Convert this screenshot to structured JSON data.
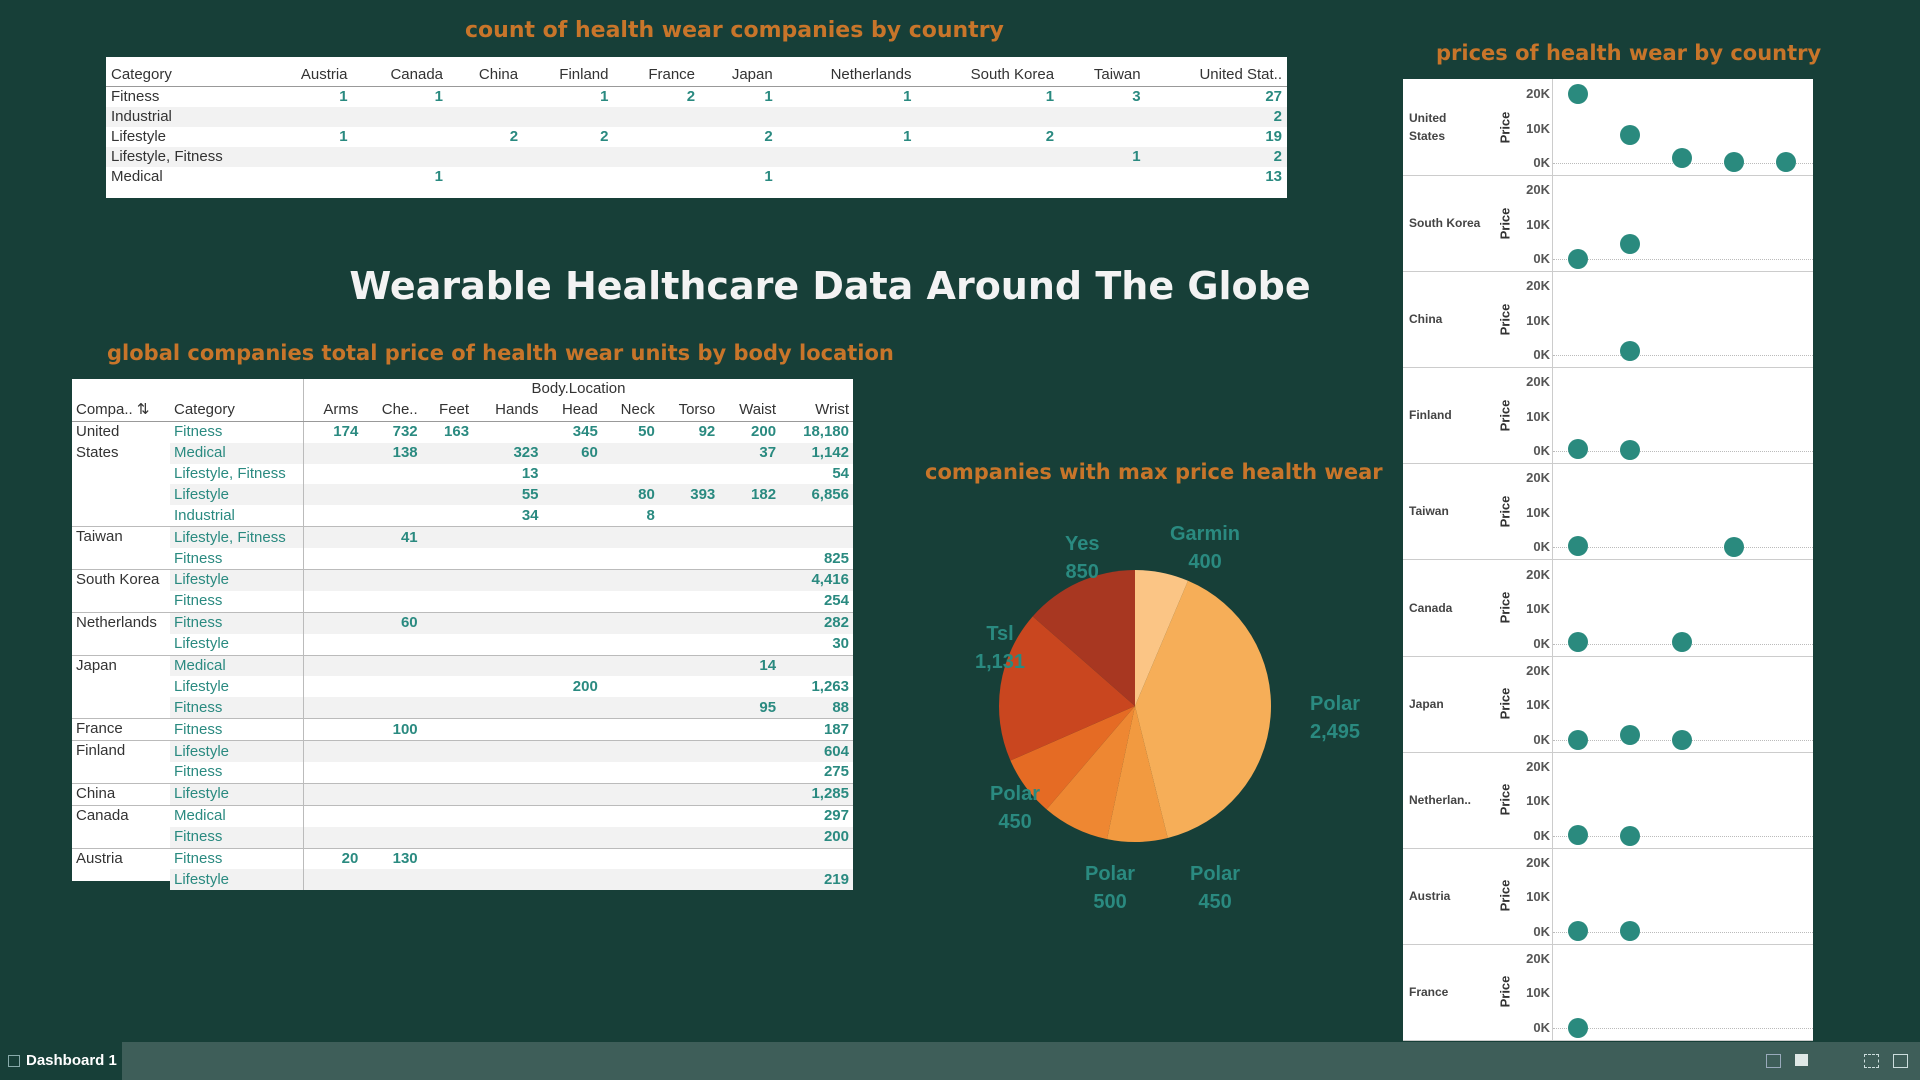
{
  "count_title": "count of health wear companies by country",
  "count_table": {
    "columns": [
      "Category",
      "Austria",
      "Canada",
      "China",
      "Finland",
      "France",
      "Japan",
      "Netherlands",
      "South Korea",
      "Taiwan",
      "United Stat.."
    ],
    "rows": [
      [
        "Fitness",
        "1",
        "1",
        "",
        "1",
        "2",
        "1",
        "1",
        "1",
        "3",
        "27"
      ],
      [
        "Industrial",
        "",
        "",
        "",
        "",
        "",
        "",
        "",
        "",
        "",
        "2"
      ],
      [
        "Lifestyle",
        "1",
        "",
        "2",
        "2",
        "",
        "2",
        "1",
        "2",
        "",
        "19"
      ],
      [
        "Lifestyle, Fitness",
        "",
        "",
        "",
        "",
        "",
        "",
        "",
        "",
        "1",
        "2"
      ],
      [
        "Medical",
        "",
        "1",
        "",
        "",
        "",
        "1",
        "",
        "",
        "",
        "13"
      ]
    ]
  },
  "main_title": "Wearable Healthcare Data Around The Globe",
  "price_title": "global companies total price of health wear units by body location",
  "price_table": {
    "group_header": "Body.Location",
    "company_header": "Compa..",
    "category_header": "Category",
    "locations": [
      "Arms",
      "Che..",
      "Feet",
      "Hands",
      "Head",
      "Neck",
      "Torso",
      "Waist",
      "Wrist"
    ],
    "rows": [
      {
        "company": "United",
        "category": "Fitness",
        "values": [
          "174",
          "732",
          "163",
          "",
          "345",
          "50",
          "92",
          "200",
          "18,180"
        ],
        "start": true
      },
      {
        "company": "States",
        "category": "Medical",
        "values": [
          "",
          "138",
          "",
          "323",
          "60",
          "",
          "",
          "37",
          "1,142"
        ]
      },
      {
        "company": "",
        "category": "Lifestyle, Fitness",
        "values": [
          "",
          "",
          "",
          "13",
          "",
          "",
          "",
          "",
          "54"
        ]
      },
      {
        "company": "",
        "category": "Lifestyle",
        "values": [
          "",
          "",
          "",
          "55",
          "",
          "80",
          "393",
          "182",
          "6,856"
        ]
      },
      {
        "company": "",
        "category": "Industrial",
        "values": [
          "",
          "",
          "",
          "34",
          "",
          "8",
          "",
          "",
          ""
        ]
      },
      {
        "company": "Taiwan",
        "category": "Lifestyle, Fitness",
        "values": [
          "",
          "41",
          "",
          "",
          "",
          "",
          "",
          "",
          ""
        ],
        "start": true
      },
      {
        "company": "",
        "category": "Fitness",
        "values": [
          "",
          "",
          "",
          "",
          "",
          "",
          "",
          "",
          "825"
        ]
      },
      {
        "company": "South Korea",
        "category": "Lifestyle",
        "values": [
          "",
          "",
          "",
          "",
          "",
          "",
          "",
          "",
          "4,416"
        ],
        "start": true
      },
      {
        "company": "",
        "category": "Fitness",
        "values": [
          "",
          "",
          "",
          "",
          "",
          "",
          "",
          "",
          "254"
        ]
      },
      {
        "company": "Netherlands",
        "category": "Fitness",
        "values": [
          "",
          "60",
          "",
          "",
          "",
          "",
          "",
          "",
          "282"
        ],
        "start": true
      },
      {
        "company": "",
        "category": "Lifestyle",
        "values": [
          "",
          "",
          "",
          "",
          "",
          "",
          "",
          "",
          "30"
        ]
      },
      {
        "company": "Japan",
        "category": "Medical",
        "values": [
          "",
          "",
          "",
          "",
          "",
          "",
          "",
          "14",
          ""
        ],
        "start": true
      },
      {
        "company": "",
        "category": "Lifestyle",
        "values": [
          "",
          "",
          "",
          "",
          "200",
          "",
          "",
          "",
          "1,263"
        ]
      },
      {
        "company": "",
        "category": "Fitness",
        "values": [
          "",
          "",
          "",
          "",
          "",
          "",
          "",
          "95",
          "88"
        ]
      },
      {
        "company": "France",
        "category": "Fitness",
        "values": [
          "",
          "100",
          "",
          "",
          "",
          "",
          "",
          "",
          "187"
        ],
        "start": true
      },
      {
        "company": "Finland",
        "category": "Lifestyle",
        "values": [
          "",
          "",
          "",
          "",
          "",
          "",
          "",
          "",
          "604"
        ],
        "start": true
      },
      {
        "company": "",
        "category": "Fitness",
        "values": [
          "",
          "",
          "",
          "",
          "",
          "",
          "",
          "",
          "275"
        ]
      },
      {
        "company": "China",
        "category": "Lifestyle",
        "values": [
          "",
          "",
          "",
          "",
          "",
          "",
          "",
          "",
          "1,285"
        ],
        "start": true
      },
      {
        "company": "Canada",
        "category": "Medical",
        "values": [
          "",
          "",
          "",
          "",
          "",
          "",
          "",
          "",
          "297"
        ],
        "start": true
      },
      {
        "company": "",
        "category": "Fitness",
        "values": [
          "",
          "",
          "",
          "",
          "",
          "",
          "",
          "",
          "200"
        ]
      },
      {
        "company": "Austria",
        "category": "Fitness",
        "values": [
          "20",
          "130",
          "",
          "",
          "",
          "",
          "",
          "",
          ""
        ],
        "start": true
      },
      {
        "company": "",
        "category": "Lifestyle",
        "values": [
          "",
          "",
          "",
          "",
          "",
          "",
          "",
          "",
          "219"
        ]
      }
    ]
  },
  "pie_title": "companies with max price health wear",
  "chart_data": [
    {
      "type": "pie",
      "title": "companies with max price health wear",
      "slices": [
        {
          "label": "Garmin",
          "value": 400,
          "display": "400",
          "color": "#fbc585"
        },
        {
          "label": "Polar",
          "value": 2495,
          "display": "2,495",
          "color": "#f6ae58"
        },
        {
          "label": "Polar",
          "value": 450,
          "display": "450",
          "color": "#f29a40"
        },
        {
          "label": "Polar",
          "value": 500,
          "display": "500",
          "color": "#ee8732"
        },
        {
          "label": "Polar",
          "value": 450,
          "display": "450",
          "color": "#e56b24"
        },
        {
          "label": "Tsl",
          "value": 1131,
          "display": "1,131",
          "color": "#c9461f"
        },
        {
          "label": "Yes",
          "value": 850,
          "display": "850",
          "color": "#a83721"
        }
      ]
    },
    {
      "type": "scatter",
      "title": "prices of health wear by country",
      "ylabel": "Price",
      "ylim": [
        0,
        20000
      ],
      "yticks": [
        "20K",
        "10K",
        "0K"
      ],
      "series": [
        {
          "name": "United States",
          "display": "United\nStates",
          "values": [
            20000,
            8000,
            1500,
            300,
            200
          ]
        },
        {
          "name": "South Korea",
          "display": "South Korea",
          "values": [
            0,
            4500
          ]
        },
        {
          "name": "China",
          "display": "China",
          "values": [
            null,
            1300
          ]
        },
        {
          "name": "Finland",
          "display": "Finland",
          "values": [
            600,
            300
          ]
        },
        {
          "name": "Taiwan",
          "display": "Taiwan",
          "values": [
            300,
            null,
            null,
            0
          ]
        },
        {
          "name": "Canada",
          "display": "Canada",
          "values": [
            300,
            null,
            300
          ]
        },
        {
          "name": "Japan",
          "display": "Japan",
          "values": [
            0,
            1300,
            0
          ]
        },
        {
          "name": "Netherlands",
          "display": "Netherlan..",
          "values": [
            300,
            0
          ]
        },
        {
          "name": "Austria",
          "display": "Austria",
          "values": [
            200,
            200
          ]
        },
        {
          "name": "France",
          "display": "France",
          "values": [
            100
          ]
        }
      ]
    }
  ],
  "scatter_title": "prices of health wear by country",
  "bottom_tab": "Dashboard 1",
  "colors": {
    "background": "#173f38",
    "accent_orange": "#c8752a",
    "teal": "#2a8a80"
  }
}
